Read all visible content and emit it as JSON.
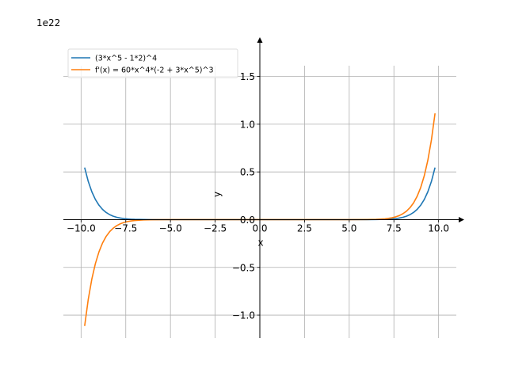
{
  "chart_data": {
    "type": "line",
    "title": "",
    "xlabel": "x",
    "ylabel": "y",
    "y_offset_label": "1e22",
    "xlim": [
      -10.99,
      10.99
    ],
    "ylim": [
      -1.24,
      1.82
    ],
    "y_scale_factor": 1e+22,
    "grid": true,
    "legend_position": "top-left",
    "x_ticks": [
      -10.0,
      -7.5,
      -5.0,
      -2.5,
      0.0,
      2.5,
      5.0,
      7.5,
      10.0
    ],
    "x_tick_labels": [
      "−10.0",
      "−7.5",
      "−5.0",
      "−2.5",
      "0.0",
      "2.5",
      "5.0",
      "7.5",
      "10.0"
    ],
    "y_ticks": [
      -1.0,
      -0.5,
      0.0,
      0.5,
      1.0,
      1.5
    ],
    "y_tick_labels": [
      "−1.0",
      "−0.5",
      "0.0",
      "0.5",
      "1.0",
      "1.5"
    ],
    "x": [
      -9.8,
      -9.6,
      -9.4,
      -9.2,
      -9.0,
      -8.8,
      -8.6,
      -8.4,
      -8.2,
      -8.0,
      -7.8,
      -7.6,
      -7.4,
      -7.2,
      -7.0,
      -6.5,
      -6.0,
      -5.0,
      -4.0,
      -3.0,
      -2.0,
      -1.0,
      0.0,
      1.0,
      2.0,
      3.0,
      4.0,
      5.0,
      6.0,
      6.5,
      7.0,
      7.2,
      7.4,
      7.6,
      7.8,
      8.0,
      8.2,
      8.4,
      8.6,
      8.8,
      9.0,
      9.2,
      9.4,
      9.6,
      9.8
    ],
    "series": [
      {
        "name": "(3*x^5 - 1*2)^4",
        "color": "#1f77b4",
        "values": [
          0.5457,
          0.4018,
          0.2932,
          0.212,
          0.1519,
          0.1078,
          0.0757,
          0.0527,
          0.0363,
          0.0248,
          0.0167,
          0.0112,
          0.0074,
          0.0048,
          0.0031,
          0.001,
          0.0003,
          0.0,
          0.0,
          0.0,
          0.0,
          0.0,
          0.0,
          0.0,
          0.0,
          0.0,
          0.0,
          0.0,
          0.0003,
          0.001,
          0.0031,
          0.0048,
          0.0074,
          0.0112,
          0.0167,
          0.0248,
          0.0363,
          0.0527,
          0.0757,
          0.1078,
          0.1519,
          0.212,
          0.2932,
          0.4018,
          0.5457
        ]
      },
      {
        "name": "f'(x) = 60*x^4*(-2 + 3*x^5)^3",
        "color": "#ff7f0e",
        "values": [
          -1.1137,
          -0.8371,
          -0.6239,
          -0.4609,
          -0.3375,
          -0.2449,
          -0.176,
          -0.1254,
          -0.0885,
          -0.0619,
          -0.0428,
          -0.0294,
          -0.0199,
          -0.0134,
          -0.0089,
          -0.0031,
          -0.001,
          0.0,
          0.0,
          0.0,
          0.0,
          0.0,
          0.0,
          0.0,
          0.0,
          0.0,
          0.0,
          0.0,
          0.001,
          0.0031,
          0.0089,
          0.0134,
          0.0199,
          0.0294,
          0.0428,
          0.0619,
          0.0885,
          0.1254,
          0.176,
          0.2449,
          0.3375,
          0.4609,
          0.6239,
          0.8371,
          1.1137
        ]
      }
    ]
  }
}
